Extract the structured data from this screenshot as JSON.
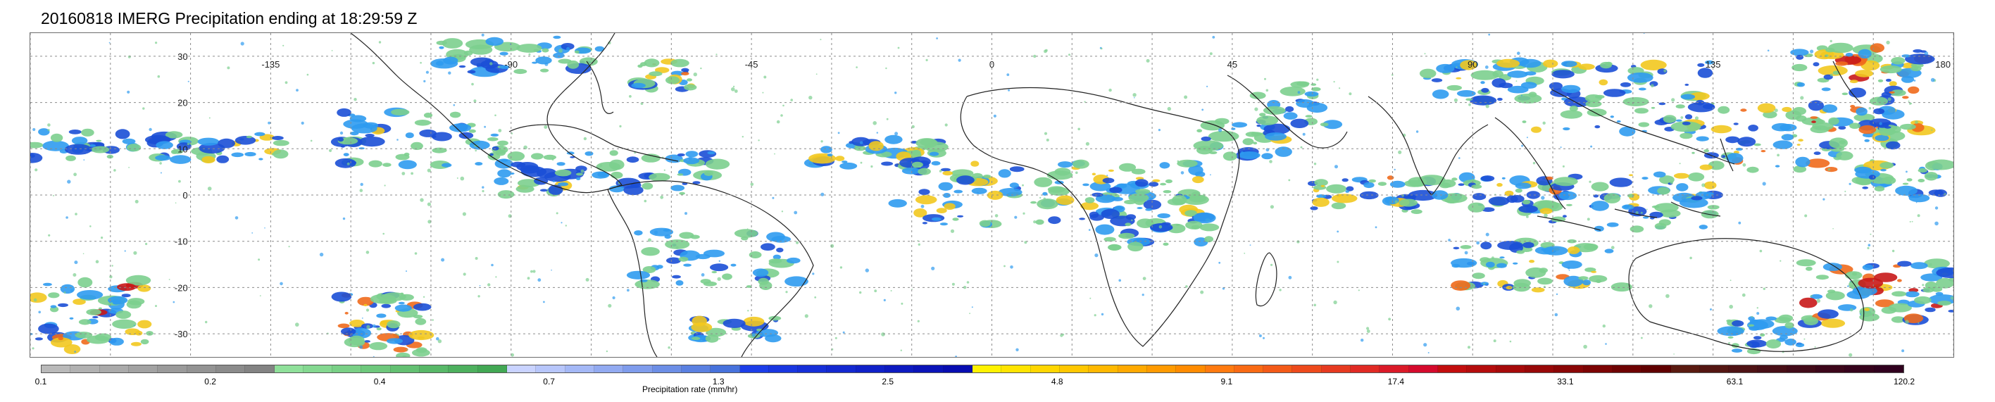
{
  "title": "20160818 IMERG Precipitation ending at 18:29:59 Z",
  "map": {
    "lat_labels": [
      "30",
      "20",
      "10",
      "0",
      "-10",
      "-20",
      "-30"
    ],
    "lat_values": [
      30,
      20,
      10,
      0,
      -10,
      -20,
      -30
    ],
    "lon_labels": [
      "-135",
      "-90",
      "-45",
      "0",
      "45",
      "90",
      "135",
      "180"
    ],
    "lon_values": [
      -135,
      -90,
      -45,
      0,
      45,
      90,
      135,
      180
    ],
    "extent": {
      "lon_min": -180,
      "lon_max": 180,
      "lat_min": -35,
      "lat_max": 35
    },
    "grid": true,
    "grid_color": "#8c8c8c",
    "coast_color": "#222222",
    "precip_swatch_colors": [
      "#7ccf8e",
      "#1b4fd6",
      "#2f9bf0",
      "#f2c81f",
      "#ef6a1c",
      "#c81818"
    ]
  },
  "colorbar": {
    "label": "Precipitation rate (mm/hr)",
    "ticks": [
      "0.1",
      "0.2",
      "0.4",
      "0.7",
      "1.3",
      "2.5",
      "4.8",
      "9.1",
      "17.4",
      "33.1",
      "63.1",
      "120.2"
    ],
    "colors": [
      "#b9b9b9",
      "#b1b1b1",
      "#aaaaaa",
      "#a2a2a2",
      "#9a9a9a",
      "#939393",
      "#8b8b8b",
      "#838383",
      "#8fe09a",
      "#84d890",
      "#79d086",
      "#6ec87c",
      "#63c072",
      "#58b868",
      "#4db05e",
      "#42a854",
      "#c9d3ff",
      "#b7c6fb",
      "#a4b8f6",
      "#92aaf1",
      "#7f9cec",
      "#6c8ee6",
      "#5a80e1",
      "#4772dc",
      "#1c3de8",
      "#1936e0",
      "#162fd8",
      "#1328d0",
      "#1021c8",
      "#0d1ac0",
      "#0a13b8",
      "#070cb0",
      "#fff200",
      "#ffe400",
      "#ffd600",
      "#ffc700",
      "#ffb800",
      "#ffa900",
      "#ff9a00",
      "#ff8b00",
      "#ff7a10",
      "#f96a14",
      "#f35a18",
      "#ed4a1c",
      "#e63a20",
      "#e02a24",
      "#da1a28",
      "#d40a2c",
      "#c20e0e",
      "#b40c0c",
      "#a60a0a",
      "#980808",
      "#8a0606",
      "#7c0404",
      "#6e0202",
      "#600000",
      "#5a1a10",
      "#541612",
      "#4e1214",
      "#480e16",
      "#420a18",
      "#3c061a",
      "#36021c",
      "#30001e"
    ]
  }
}
